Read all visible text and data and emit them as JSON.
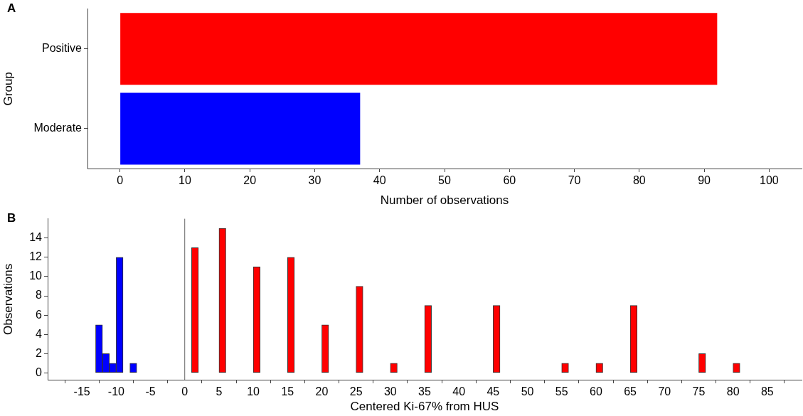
{
  "chart_data": [
    {
      "type": "bar",
      "orientation": "horizontal",
      "categories": [
        "Positive",
        "Moderate"
      ],
      "values": [
        92,
        37
      ],
      "colors": [
        "#ff0000",
        "#0000ff"
      ],
      "xlabel": "Number of observations",
      "ylabel": "Group",
      "xlim": [
        -5,
        105
      ],
      "xticks": [
        0,
        10,
        20,
        30,
        40,
        50,
        60,
        70,
        80,
        90,
        100
      ],
      "annotations": [
        "A"
      ]
    },
    {
      "type": "histogram",
      "bins": [
        -13,
        -12,
        -11,
        -10,
        -9,
        -8,
        -7,
        -6,
        -5,
        -4,
        -3,
        -2,
        -1,
        0,
        1,
        2,
        3,
        4,
        5,
        6,
        7,
        8,
        9,
        10,
        11,
        12,
        13,
        14,
        15,
        16,
        17,
        18,
        19,
        20,
        21,
        22,
        23,
        24,
        25,
        26,
        27,
        28,
        29,
        30,
        31,
        32,
        33,
        34,
        35,
        36,
        37,
        38,
        39,
        40,
        41,
        42,
        43,
        44,
        45,
        46,
        47,
        48,
        49,
        50,
        51,
        52,
        53,
        54,
        55,
        56,
        57,
        58,
        59,
        60,
        61,
        62,
        63,
        64,
        65,
        66,
        67,
        68,
        69,
        70,
        71,
        72,
        73,
        74,
        75,
        76,
        77,
        78,
        79,
        80,
        81
      ],
      "values": [
        5,
        2,
        1,
        12,
        0,
        1,
        0,
        0,
        null,
        0,
        0,
        0,
        0,
        0,
        13,
        0,
        0,
        0,
        15,
        0,
        0,
        0,
        0,
        11,
        0,
        0,
        0,
        0,
        12,
        0,
        0,
        0,
        0,
        5,
        0,
        0,
        0,
        0,
        9,
        0,
        0,
        0,
        0,
        1,
        0,
        0,
        0,
        0,
        7,
        0,
        0,
        0,
        0,
        0,
        0,
        0,
        0,
        0,
        7,
        0,
        0,
        0,
        0,
        0,
        0,
        0,
        0,
        0,
        1,
        0,
        0,
        0,
        0,
        1,
        0,
        0,
        0,
        0,
        7,
        0,
        0,
        0,
        0,
        0,
        0,
        0,
        0,
        0,
        2,
        0,
        0,
        0,
        0,
        1
      ],
      "colors": [
        "#0000ff",
        "#0000ff",
        "#0000ff",
        "#0000ff",
        "#0000ff",
        "#0000ff",
        "#0000ff",
        "#0000ff",
        "#0000ff",
        "#ff0000",
        "#ff0000",
        "#ff0000",
        "#ff0000",
        "#ff0000",
        "#ff0000",
        "#ff0000",
        "#ff0000",
        "#ff0000",
        "#ff0000",
        "#ff0000",
        "#ff0000",
        "#ff0000",
        "#ff0000",
        "#ff0000",
        "#ff0000",
        "#ff0000",
        "#ff0000",
        "#ff0000",
        "#ff0000",
        "#ff0000",
        "#ff0000",
        "#ff0000",
        "#ff0000",
        "#ff0000",
        "#ff0000",
        "#ff0000",
        "#ff0000",
        "#ff0000",
        "#ff0000",
        "#ff0000",
        "#ff0000",
        "#ff0000",
        "#ff0000",
        "#ff0000",
        "#ff0000",
        "#ff0000",
        "#ff0000",
        "#ff0000",
        "#ff0000",
        "#ff0000",
        "#ff0000",
        "#ff0000",
        "#ff0000",
        "#ff0000",
        "#ff0000",
        "#ff0000",
        "#ff0000",
        "#ff0000",
        "#ff0000",
        "#ff0000",
        "#ff0000",
        "#ff0000",
        "#ff0000",
        "#ff0000",
        "#ff0000",
        "#ff0000",
        "#ff0000",
        "#ff0000",
        "#ff0000",
        "#ff0000",
        "#ff0000",
        "#ff0000",
        "#ff0000",
        "#ff0000",
        "#ff0000",
        "#ff0000",
        "#ff0000",
        "#ff0000",
        "#ff0000",
        "#ff0000",
        "#ff0000",
        "#ff0000",
        "#ff0000",
        "#ff0000",
        "#ff0000",
        "#ff0000",
        "#ff0000",
        "#ff0000",
        "#ff0000",
        "#ff0000",
        "#ff0000",
        "#ff0000",
        "#ff0000",
        "#ff0000"
      ],
      "xlabel": "Centered Ki-67% from HUS",
      "ylabel": "Observations",
      "xlim": [
        -20,
        90
      ],
      "xticks": [
        -15,
        -10,
        -5,
        0,
        5,
        10,
        15,
        20,
        25,
        30,
        35,
        40,
        45,
        50,
        55,
        60,
        65,
        70,
        75,
        80,
        85
      ],
      "ylim": [
        -0.7,
        16
      ],
      "yticks": [
        0,
        2,
        4,
        6,
        8,
        10,
        12,
        14
      ],
      "ref_lines": [
        {
          "axis": "x",
          "value": 0,
          "color": "#666666"
        }
      ],
      "annotations": [
        "B"
      ]
    }
  ]
}
